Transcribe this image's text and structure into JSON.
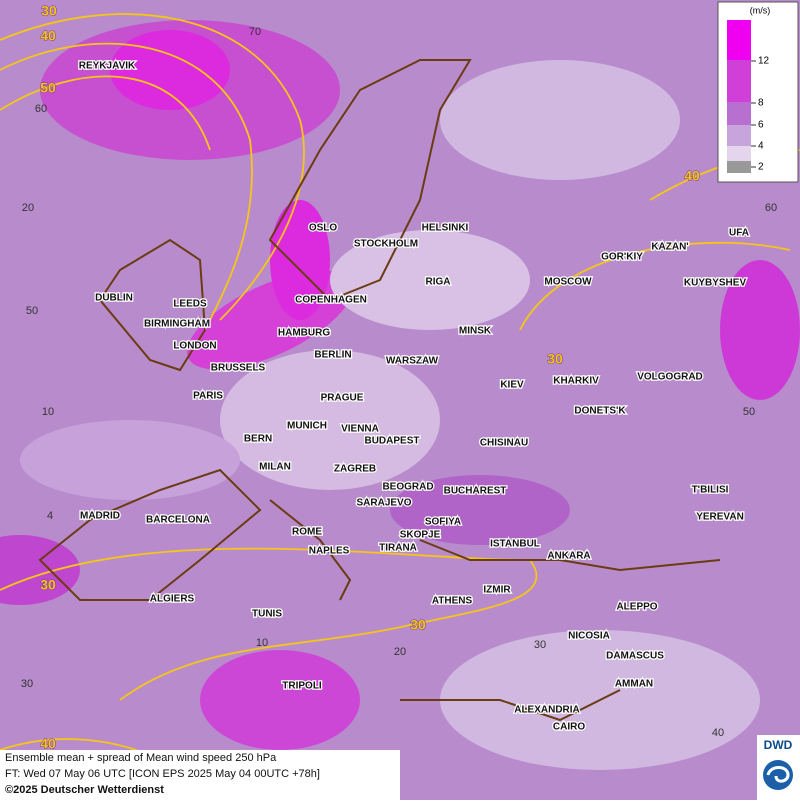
{
  "legend": {
    "unit": "(m/s)",
    "levels": [
      12,
      8,
      6,
      4,
      2
    ]
  },
  "cities": [
    "REYKJAVIK",
    "OSLO",
    "STOCKHOLM",
    "HELSINKI",
    "GOR'KIY",
    "KAZAN'",
    "UFA",
    "DUBLIN",
    "LEEDS",
    "RIGA",
    "MOSCOW",
    "COPENHAGEN",
    "KUYBYSHEV",
    "BIRMINGHAM",
    "HAMBURG",
    "MINSK",
    "LONDON",
    "BERLIN",
    "WARSZAW",
    "BRUSSELS",
    "KIEV",
    "KHARKIV",
    "VOLGOGRAD",
    "PARIS",
    "PRAGUE",
    "DONETS'K",
    "MUNICH",
    "VIENNA",
    "BERN",
    "BUDAPEST",
    "CHISINAU",
    "MILAN",
    "ZAGREB",
    "BEOGRAD",
    "BUCHAREST",
    "T'BILISI",
    "MADRID",
    "BARCELONA",
    "SARAJEVO",
    "SOFIYA",
    "YEREVAN",
    "ROME",
    "SKOPJE",
    "ISTANBUL",
    "NAPLES",
    "TIRANA",
    "ANKARA",
    "ALGIERS",
    "IZMIR",
    "ATHENS",
    "ALEPPO",
    "TUNIS",
    "NICOSIA",
    "DAMASCUS",
    "TRIPOLI",
    "AMMAN",
    "ALEXANDRIA",
    "CAIRO"
  ],
  "contour_labels": [
    30,
    40,
    50,
    40,
    30,
    30,
    30,
    40
  ],
  "grid_labels": [
    70,
    60,
    20,
    50,
    10,
    4,
    20,
    30,
    10,
    30,
    40,
    60,
    50
  ],
  "footer": {
    "line1": "Ensemble mean + spread of Mean wind speed 250 hPa",
    "line2": "FT: Wed 07 May 06 UTC [ICON EPS 2025 May 04 00UTC +78h]",
    "line3": "©2025 Deutscher Wetterdienst"
  },
  "logo": "DWD"
}
